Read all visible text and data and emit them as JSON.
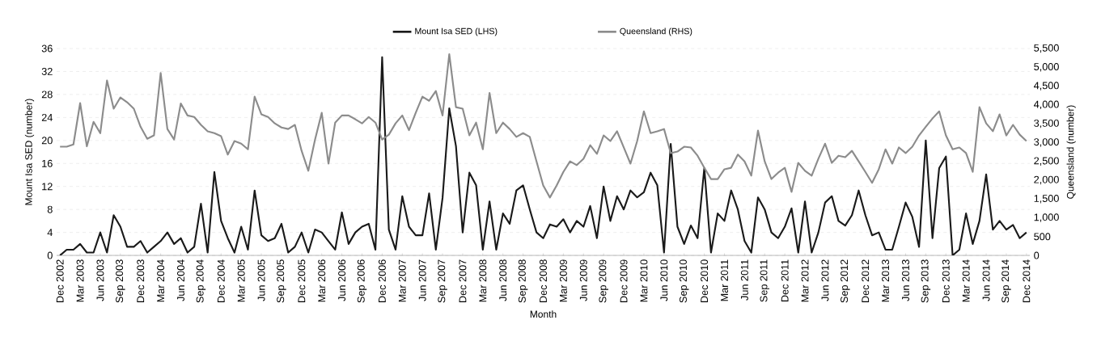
{
  "chart_data": {
    "type": "line",
    "xlabel": "Month",
    "ylabel": "Mount Isa SED (number)",
    "y2label": "Queensland (number)",
    "categories": [
      "Dec 2002",
      null,
      null,
      "Mar 2003",
      null,
      null,
      "Jun 2003",
      null,
      null,
      "Sep 2003",
      null,
      null,
      "Dec 2003",
      null,
      null,
      "Mar 2004",
      null,
      null,
      "Jun 2004",
      null,
      null,
      "Sep 2004",
      null,
      null,
      "Dec 2004",
      null,
      null,
      "Mar 2005",
      null,
      null,
      "Jun 2005",
      null,
      null,
      "Sep 2005",
      null,
      null,
      "Dec 2005",
      null,
      null,
      "Mar 2006",
      null,
      null,
      "Jun 2006",
      null,
      null,
      "Sep 2006",
      null,
      null,
      "Dec 2006",
      null,
      null,
      "Mar 2007",
      null,
      null,
      "Jun 2007",
      null,
      null,
      "Sep 2007",
      null,
      null,
      "Dec 2007",
      null,
      null,
      "Mar 2008",
      null,
      null,
      "Jun 2008",
      null,
      null,
      "Sep 2008",
      null,
      null,
      "Dec 2008",
      null,
      null,
      "Mar 2009",
      null,
      null,
      "Jun 2009",
      null,
      null,
      "Sep 2009",
      null,
      null,
      "Dec 2009",
      null,
      null,
      "Mar 2010",
      null,
      null,
      "Jun 2010",
      null,
      null,
      "Sep 2010",
      null,
      null,
      "Dec 2010",
      null,
      null,
      "Mar 2011",
      null,
      null,
      "Jun 2011",
      null,
      null,
      "Sep 2011",
      null,
      null,
      "Dec 2011",
      null,
      null,
      "Mar 2012",
      null,
      null,
      "Jun 2012",
      null,
      null,
      "Sep 2012",
      null,
      null,
      "Dec 2012",
      null,
      null,
      "Mar 2013",
      null,
      null,
      "Jun 2013",
      null,
      null,
      "Sep 2013",
      null,
      null,
      "Dec 2013",
      null,
      null,
      "Mar 2014",
      null,
      null,
      "Jun 2014",
      null,
      null,
      "Sep 2014",
      null,
      null,
      "Dec 2014"
    ],
    "series": [
      {
        "name": "Mount Isa SED (LHS)",
        "color": "#1a1a1a",
        "values": [
          0,
          1,
          1,
          2,
          0.5,
          0.5,
          4,
          0.5,
          7,
          5,
          1.5,
          1.5,
          2.5,
          0.5,
          1.5,
          2.5,
          4,
          2,
          3,
          0.5,
          1.5,
          9,
          0.5,
          14.5,
          6,
          3,
          0.5,
          5,
          1,
          11.3,
          3.5,
          2.5,
          3,
          5.5,
          0.5,
          1.5,
          4,
          0.5,
          4.5,
          4,
          2.5,
          1,
          7.5,
          2,
          4,
          5,
          5.5,
          1,
          34.5,
          4.5,
          1,
          10.3,
          5,
          3.5,
          3.5,
          10.8,
          1,
          10,
          25.6,
          19,
          4,
          14.4,
          12.2,
          1,
          9.4,
          1,
          7.3,
          5.5,
          11.3,
          12.2,
          8,
          4,
          3,
          5.4,
          5,
          6.3,
          4,
          6,
          5,
          8.6,
          3,
          12,
          6,
          10.3,
          8,
          11.3,
          10.1,
          11,
          14.4,
          12.2,
          0.5,
          19.4,
          5,
          2,
          5.2,
          3,
          15.2,
          0.5,
          7.3,
          6,
          11.3,
          8,
          2.5,
          0.5,
          10.1,
          8,
          4,
          3,
          5,
          8.2,
          0.5,
          9.4,
          0.5,
          4,
          9.2,
          10.3,
          6,
          5.2,
          7,
          11.3,
          7,
          3.5,
          4,
          1,
          1,
          5,
          9.2,
          6.7,
          1.5,
          20,
          3,
          15.2,
          17.2,
          0,
          1,
          7.3,
          2,
          6,
          14.1,
          4.5,
          6,
          4.5,
          5.3,
          3,
          4
        ]
      },
      {
        "name": "Queensland (RHS)",
        "color": "#8c8c8c",
        "axis": "y2",
        "values": [
          2890,
          2890,
          2950,
          4050,
          2900,
          3550,
          3250,
          4650,
          3900,
          4200,
          4070,
          3900,
          3420,
          3100,
          3190,
          4850,
          3360,
          3080,
          4040,
          3720,
          3680,
          3470,
          3300,
          3250,
          3170,
          2680,
          3040,
          2970,
          2820,
          4220,
          3750,
          3680,
          3510,
          3400,
          3360,
          3470,
          2780,
          2250,
          3080,
          3790,
          2440,
          3530,
          3720,
          3720,
          3620,
          3510,
          3680,
          3530,
          3080,
          3210,
          3510,
          3720,
          3330,
          3790,
          4220,
          4110,
          4370,
          3720,
          5350,
          3940,
          3900,
          3190,
          3530,
          2820,
          4320,
          3250,
          3530,
          3360,
          3150,
          3250,
          3150,
          2500,
          1860,
          1540,
          1860,
          2220,
          2500,
          2400,
          2570,
          2930,
          2700,
          3190,
          3040,
          3300,
          2870,
          2440,
          3040,
          3830,
          3250,
          3300,
          3360,
          2720,
          2760,
          2890,
          2870,
          2650,
          2330,
          2030,
          2030,
          2290,
          2330,
          2680,
          2500,
          2120,
          3320,
          2500,
          2030,
          2200,
          2330,
          1690,
          2460,
          2250,
          2120,
          2570,
          2970,
          2460,
          2650,
          2610,
          2780,
          2500,
          2220,
          1930,
          2290,
          2820,
          2440,
          2870,
          2720,
          2890,
          3190,
          3420,
          3640,
          3830,
          3190,
          2820,
          2870,
          2720,
          2220,
          3940,
          3510,
          3300,
          3750,
          3190,
          3470,
          3210,
          3040
        ]
      }
    ],
    "ylim": [
      0,
      36
    ],
    "yticks": [
      0,
      4,
      8,
      12,
      16,
      20,
      24,
      28,
      32,
      36
    ],
    "y2lim": [
      0,
      5500
    ],
    "y2ticks": [
      0,
      500,
      {
        "value": 1000,
        "label": "1,000"
      },
      {
        "value": 1500,
        "label": "1,500"
      },
      {
        "value": 2000,
        "label": "2,000"
      },
      {
        "value": 2500,
        "label": "2,500"
      },
      {
        "value": 3000,
        "label": "3,000"
      },
      {
        "value": 3500,
        "label": "3,500"
      },
      {
        "value": 4000,
        "label": "4,000"
      },
      {
        "value": 4500,
        "label": "4,500"
      },
      {
        "value": 5000,
        "label": "5,000"
      },
      {
        "value": 5500,
        "label": "5,500"
      }
    ],
    "grid": "y",
    "legend": "top",
    "marker": "none"
  }
}
